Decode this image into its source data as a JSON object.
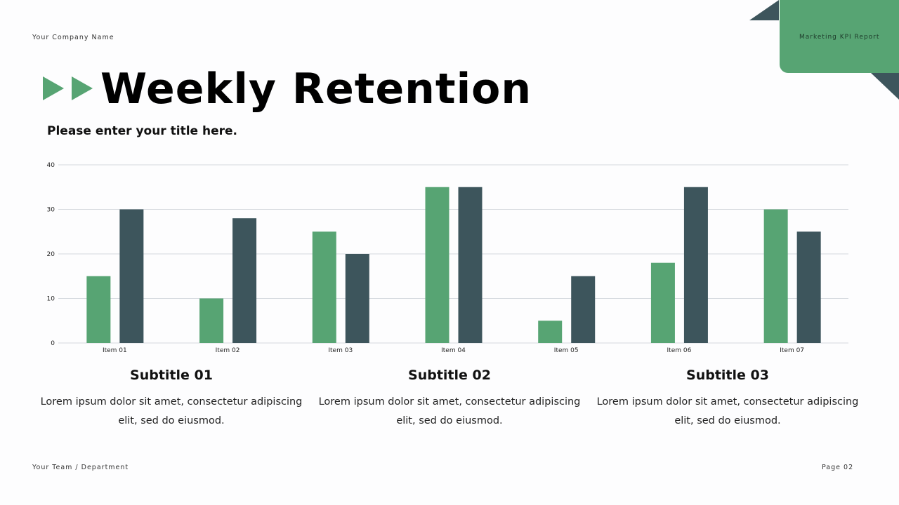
{
  "header": {
    "company": "Your Company Name",
    "report": "Marketing KPI Report",
    "title": "Weekly Retention",
    "subtitle": "Please enter your title here."
  },
  "colors": {
    "green": "#57a473",
    "dark": "#3d555c"
  },
  "chart_data": {
    "type": "bar",
    "categories": [
      "Item 01",
      "Item 02",
      "Item 03",
      "Item 04",
      "Item 05",
      "Item 06",
      "Item 07"
    ],
    "series": [
      {
        "values": [
          15,
          10,
          25,
          35,
          5,
          18,
          30
        ],
        "color": "#57a473"
      },
      {
        "values": [
          30,
          28,
          20,
          35,
          15,
          35,
          25
        ],
        "color": "#3d555c"
      }
    ],
    "ylim": [
      0,
      40
    ],
    "yticks": [
      0,
      10,
      20,
      30,
      40
    ],
    "grid": true
  },
  "sections": [
    {
      "title": "Subtitle 01",
      "text": "Lorem ipsum dolor sit amet, consectetur adipiscing elit, sed do eiusmod."
    },
    {
      "title": "Subtitle 02",
      "text": "Lorem ipsum dolor sit amet, consectetur adipiscing elit, sed do eiusmod."
    },
    {
      "title": "Subtitle 03",
      "text": "Lorem ipsum dolor sit amet, consectetur adipiscing elit, sed do eiusmod."
    }
  ],
  "footer": {
    "team": "Your Team / Department",
    "page": "Page 02"
  }
}
